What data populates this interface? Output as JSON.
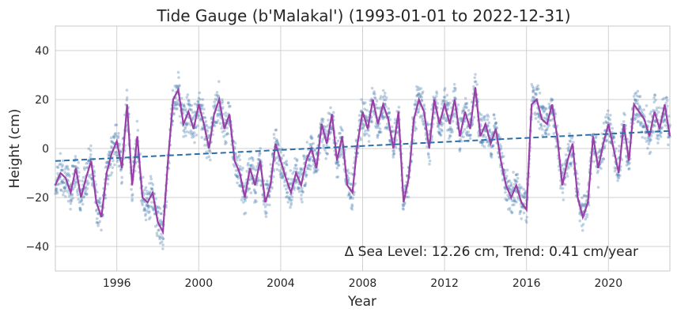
{
  "chart_data": {
    "type": "scatter",
    "title": "Tide Gauge (b'Malakal') (1993-01-01 to 2022-12-31)",
    "xlabel": "Year",
    "ylabel": "Height (cm)",
    "xlim": [
      1993.0,
      2023.0
    ],
    "ylim": [
      -50,
      50
    ],
    "x_ticks": [
      1996,
      2000,
      2004,
      2008,
      2012,
      2016,
      2020
    ],
    "y_ticks": [
      -40,
      -20,
      0,
      20,
      40
    ],
    "x_tick_labels": [
      "1996",
      "2000",
      "2004",
      "2008",
      "2012",
      "2016",
      "2020"
    ],
    "y_tick_labels": [
      "−40",
      "−20",
      "0",
      "20",
      "40"
    ],
    "grid": true,
    "annotation": "Δ Sea Level: 12.26 cm, Trend: 0.41 cm/year",
    "colors": {
      "points": "#4a7fb0",
      "smooth": "#9b3fa8",
      "trend": "#2c6fa8",
      "grid": "#d0d0d0",
      "frame": "#c8c8c8"
    },
    "series": [
      {
        "kind": "daily_points",
        "x": [
          1993.0,
          1993.25,
          1993.5,
          1993.75,
          1994.0,
          1994.25,
          1994.5,
          1994.75,
          1995.0,
          1995.25,
          1995.5,
          1995.75,
          1996.0,
          1996.25,
          1996.5,
          1996.75,
          1997.0,
          1997.25,
          1997.5,
          1997.75,
          1998.0,
          1998.25,
          1998.5,
          1998.75,
          1999.0,
          1999.25,
          1999.5,
          1999.75,
          2000.0,
          2000.25,
          2000.5,
          2000.75,
          2001.0,
          2001.25,
          2001.5,
          2001.75,
          2002.0,
          2002.25,
          2002.5,
          2002.75,
          2003.0,
          2003.25,
          2003.5,
          2003.75,
          2004.0,
          2004.25,
          2004.5,
          2004.75,
          2005.0,
          2005.25,
          2005.5,
          2005.75,
          2006.0,
          2006.25,
          2006.5,
          2006.75,
          2007.0,
          2007.25,
          2007.5,
          2007.75,
          2008.0,
          2008.25,
          2008.5,
          2008.75,
          2009.0,
          2009.25,
          2009.5,
          2009.75,
          2010.0,
          2010.25,
          2010.5,
          2010.75,
          2011.0,
          2011.25,
          2011.5,
          2011.75,
          2012.0,
          2012.25,
          2012.5,
          2012.75,
          2013.0,
          2013.25,
          2013.5,
          2013.75,
          2014.0,
          2014.25,
          2014.5,
          2014.75,
          2015.0,
          2015.25,
          2015.5,
          2015.75,
          2016.0,
          2016.25,
          2016.5,
          2016.75,
          2017.0,
          2017.25,
          2017.5,
          2017.75,
          2018.0,
          2018.25,
          2018.5,
          2018.75,
          2019.0,
          2019.25,
          2019.5,
          2019.75,
          2020.0,
          2020.25,
          2020.5,
          2020.75,
          2021.0,
          2021.25,
          2021.5,
          2021.75,
          2022.0,
          2022.25,
          2022.5,
          2022.75,
          2023.0
        ],
        "y": [
          -15,
          -10,
          -12,
          -18,
          -8,
          -20,
          -12,
          -5,
          -22,
          -28,
          -10,
          -2,
          3,
          -8,
          18,
          -15,
          5,
          -20,
          -22,
          -18,
          -30,
          -34,
          -5,
          20,
          24,
          10,
          15,
          8,
          18,
          10,
          0,
          14,
          20,
          8,
          14,
          -5,
          -10,
          -20,
          -8,
          -15,
          -5,
          -22,
          -15,
          2,
          -5,
          -12,
          -18,
          -10,
          -15,
          -5,
          0,
          -8,
          10,
          2,
          14,
          -5,
          5,
          -15,
          -18,
          2,
          15,
          8,
          20,
          10,
          18,
          12,
          0,
          15,
          -22,
          -12,
          12,
          20,
          15,
          0,
          20,
          10,
          18,
          10,
          20,
          5,
          15,
          8,
          25,
          5,
          10,
          2,
          8,
          -5,
          -15,
          -20,
          -15,
          -22,
          -25,
          18,
          20,
          12,
          10,
          18,
          5,
          -15,
          -5,
          2,
          -20,
          -28,
          -22,
          5,
          -8,
          2,
          10,
          0,
          -10,
          10,
          -5,
          18,
          15,
          12,
          5,
          15,
          8,
          18,
          5
        ],
        "point_color": "#4a7fb0"
      },
      {
        "kind": "smoothed",
        "x": [
          1993.0,
          1993.25,
          1993.5,
          1993.75,
          1994.0,
          1994.25,
          1994.5,
          1994.75,
          1995.0,
          1995.25,
          1995.5,
          1995.75,
          1996.0,
          1996.25,
          1996.5,
          1996.75,
          1997.0,
          1997.25,
          1997.5,
          1997.75,
          1998.0,
          1998.25,
          1998.5,
          1998.75,
          1999.0,
          1999.25,
          1999.5,
          1999.75,
          2000.0,
          2000.25,
          2000.5,
          2000.75,
          2001.0,
          2001.25,
          2001.5,
          2001.75,
          2002.0,
          2002.25,
          2002.5,
          2002.75,
          2003.0,
          2003.25,
          2003.5,
          2003.75,
          2004.0,
          2004.25,
          2004.5,
          2004.75,
          2005.0,
          2005.25,
          2005.5,
          2005.75,
          2006.0,
          2006.25,
          2006.5,
          2006.75,
          2007.0,
          2007.25,
          2007.5,
          2007.75,
          2008.0,
          2008.25,
          2008.5,
          2008.75,
          2009.0,
          2009.25,
          2009.5,
          2009.75,
          2010.0,
          2010.25,
          2010.5,
          2010.75,
          2011.0,
          2011.25,
          2011.5,
          2011.75,
          2012.0,
          2012.25,
          2012.5,
          2012.75,
          2013.0,
          2013.25,
          2013.5,
          2013.75,
          2014.0,
          2014.25,
          2014.5,
          2014.75,
          2015.0,
          2015.25,
          2015.5,
          2015.75,
          2016.0,
          2016.25,
          2016.5,
          2016.75,
          2017.0,
          2017.25,
          2017.5,
          2017.75,
          2018.0,
          2018.25,
          2018.5,
          2018.75,
          2019.0,
          2019.25,
          2019.5,
          2019.75,
          2020.0,
          2020.25,
          2020.5,
          2020.75,
          2021.0,
          2021.25,
          2021.5,
          2021.75,
          2022.0,
          2022.25,
          2022.5,
          2022.75,
          2023.0
        ],
        "y": [
          -15,
          -10,
          -12,
          -18,
          -8,
          -20,
          -12,
          -5,
          -22,
          -28,
          -10,
          -2,
          3,
          -8,
          18,
          -15,
          5,
          -20,
          -22,
          -18,
          -30,
          -34,
          -5,
          20,
          24,
          10,
          15,
          8,
          18,
          10,
          0,
          14,
          20,
          8,
          14,
          -5,
          -10,
          -20,
          -8,
          -15,
          -5,
          -22,
          -15,
          2,
          -5,
          -12,
          -18,
          -10,
          -15,
          -5,
          0,
          -8,
          10,
          2,
          14,
          -5,
          5,
          -15,
          -18,
          2,
          15,
          8,
          20,
          10,
          18,
          12,
          0,
          15,
          -22,
          -12,
          12,
          20,
          15,
          0,
          20,
          10,
          18,
          10,
          20,
          5,
          15,
          8,
          25,
          5,
          10,
          2,
          8,
          -5,
          -15,
          -20,
          -15,
          -22,
          -25,
          18,
          20,
          12,
          10,
          18,
          5,
          -15,
          -5,
          2,
          -20,
          -28,
          -22,
          5,
          -8,
          2,
          10,
          0,
          -10,
          10,
          -5,
          18,
          15,
          12,
          5,
          15,
          8,
          18,
          5
        ],
        "line_color": "#9b3fa8"
      },
      {
        "kind": "trend",
        "x": [
          1993.0,
          2023.0
        ],
        "y": [
          -5.1,
          7.2
        ],
        "line_color": "#2c6fa8"
      }
    ]
  }
}
